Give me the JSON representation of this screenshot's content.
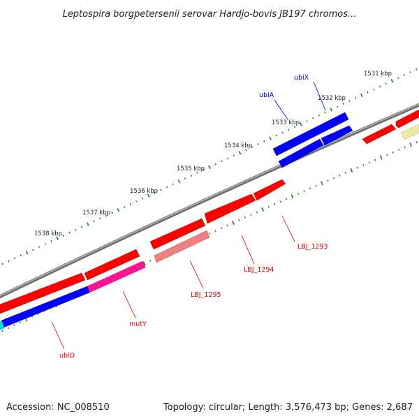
{
  "title": "Leptospira borgpetersenii serovar Hardjo-bovis JB197 chromos...",
  "footer": {
    "accession": "Accession: NC_008510",
    "summary": "Topology: circular; Length: 3,576,473 bp; Genes: 2,687"
  },
  "colors": {
    "backbone": "#8a8a8a",
    "tick": "#1a7a1a",
    "gene_red": "#ff0000",
    "gene_blue": "#0000ff",
    "gene_pink": "#ff1493",
    "gene_salmon": "#f08080",
    "gene_yellow": "#eee8aa",
    "gene_cyan": "#00e0e0",
    "label_red": "#cc0000",
    "label_blue": "#0000cc"
  },
  "ticks": [
    {
      "label": "1531 kbp"
    },
    {
      "label": "1532 kbp"
    },
    {
      "label": "1533 kbp"
    },
    {
      "label": "1534 kbp"
    },
    {
      "label": "1535 kbp"
    },
    {
      "label": "1536 kbp"
    },
    {
      "label": "1537 kbp"
    },
    {
      "label": "1538 kbp"
    }
  ],
  "gene_labels": [
    {
      "name": "ubiX",
      "color": "blue"
    },
    {
      "name": "ubiA",
      "color": "blue"
    },
    {
      "name": "LBJ_1293",
      "color": "red"
    },
    {
      "name": "LBJ_1294",
      "color": "red"
    },
    {
      "name": "LBJ_1295",
      "color": "red"
    },
    {
      "name": "mutY",
      "color": "red"
    },
    {
      "name": "ubiD",
      "color": "red"
    }
  ]
}
